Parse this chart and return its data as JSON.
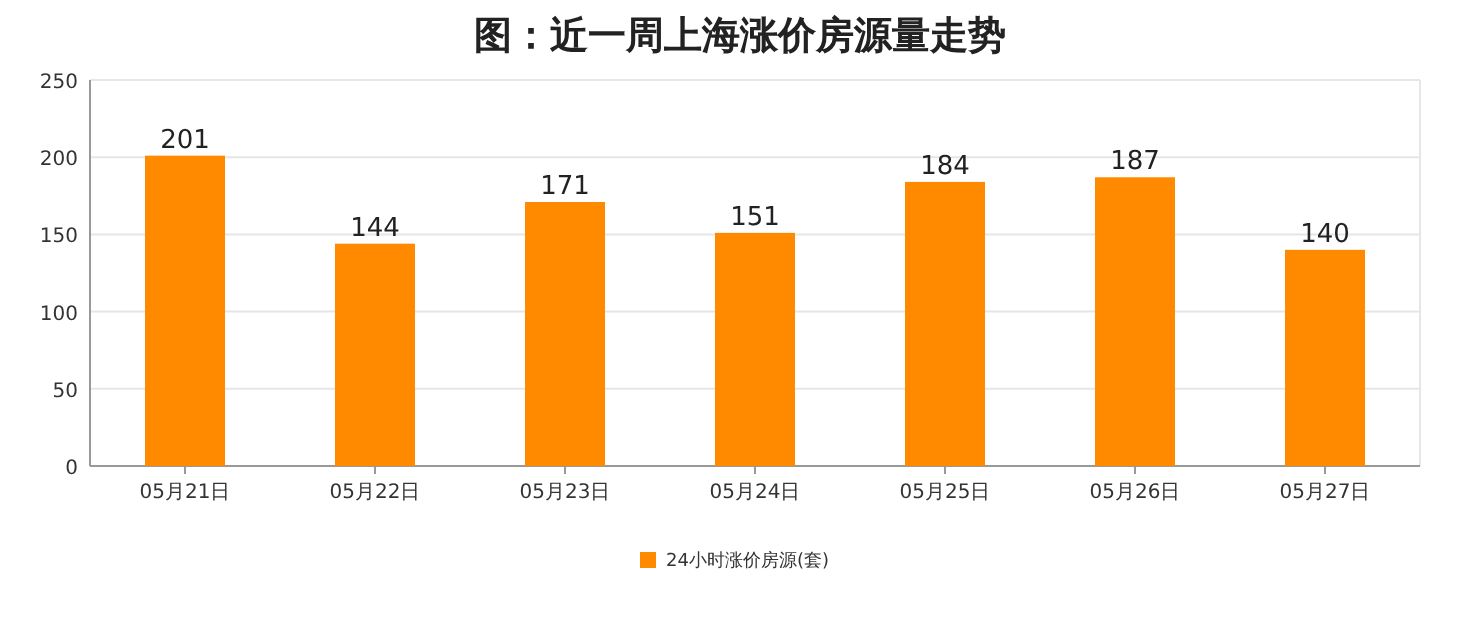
{
  "chart_data": {
    "type": "bar",
    "title": "图：近一周上海涨价房源量走势",
    "categories": [
      "05月21日",
      "05月22日",
      "05月23日",
      "05月24日",
      "05月25日",
      "05月26日",
      "05月27日"
    ],
    "series": [
      {
        "name": "24小时涨价房源(套)",
        "color": "#ff8a00",
        "values": [
          201,
          144,
          171,
          151,
          184,
          187,
          140
        ]
      }
    ],
    "ylim": [
      0,
      250
    ],
    "yticks": [
      0,
      50,
      100,
      150,
      200,
      250
    ],
    "grid": "y",
    "data_labels": true,
    "legend": "bottom"
  }
}
